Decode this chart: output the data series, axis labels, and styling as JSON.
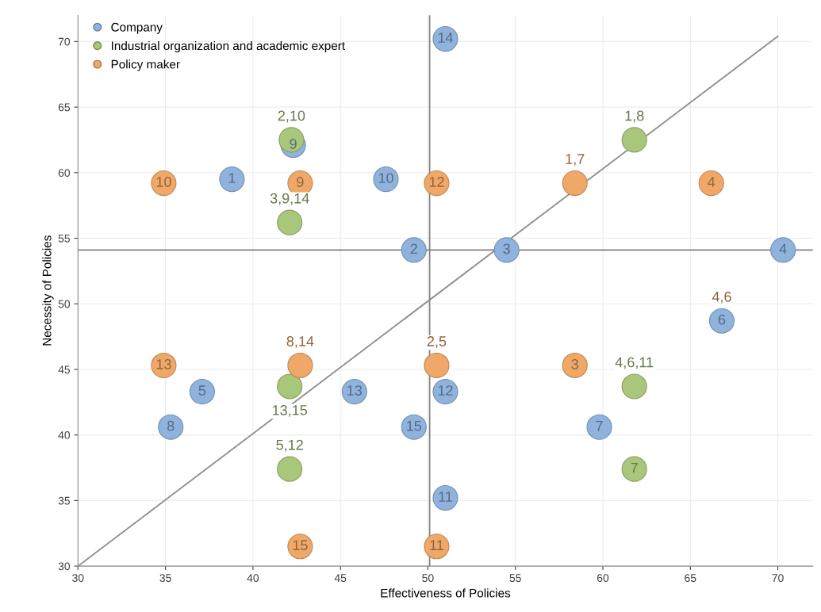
{
  "chart_data": {
    "type": "scatter",
    "xlabel": "Effectiveness of Policies",
    "ylabel": "Necessity of Policies",
    "xlim": [
      30,
      72
    ],
    "ylim": [
      30,
      72
    ],
    "xticks": [
      30,
      35,
      40,
      45,
      50,
      55,
      60,
      65,
      70
    ],
    "yticks": [
      30,
      35,
      40,
      45,
      50,
      55,
      60,
      65,
      70
    ],
    "grid": true,
    "legend": "top left",
    "series": [
      {
        "name": "Company",
        "color": "#8fb3dc",
        "marker": "circle",
        "x": [
          38.8,
          49.2,
          54.5,
          70.3,
          37.1,
          66.8,
          59.8,
          35.3,
          42.3,
          47.6,
          51.0,
          51.0,
          45.8,
          51.0,
          49.2
        ],
        "values": [
          59.5,
          54.1,
          54.1,
          54.1,
          43.3,
          48.7,
          40.6,
          40.6,
          62.1,
          59.5,
          35.2,
          43.3,
          43.3,
          70.2,
          40.6
        ]
      },
      {
        "name": "Industrial organization and academic expert",
        "color": "#a9c77a",
        "marker": "circle",
        "x": [
          42.2,
          42.1,
          61.8,
          42.1,
          61.8,
          42.1,
          61.8
        ],
        "values": [
          62.5,
          56.2,
          62.5,
          43.7,
          43.7,
          37.4,
          37.4
        ]
      },
      {
        "name": "Policy maker",
        "color": "#f0a868",
        "marker": "circle",
        "x": [
          34.9,
          42.7,
          50.5,
          58.4,
          66.2,
          42.7,
          34.9,
          50.5,
          58.4,
          42.7,
          50.5
        ],
        "values": [
          59.2,
          59.2,
          59.2,
          59.2,
          59.2,
          45.3,
          45.3,
          45.3,
          45.3,
          31.5,
          31.5
        ]
      },
      {
        "type": "line",
        "color": "#8c8c8c",
        "x": [
          30,
          70
        ],
        "values": [
          30,
          70.4
        ]
      }
    ],
    "annotations": [
      {
        "text": "1",
        "x": 38.8,
        "y": 59.5
      },
      {
        "text": "2",
        "x": 49.2,
        "y": 54.1
      },
      {
        "text": "3",
        "x": 54.5,
        "y": 54.1
      },
      {
        "text": "4",
        "x": 70.3,
        "y": 54.1
      },
      {
        "text": "5",
        "x": 37.1,
        "y": 43.3
      },
      {
        "text": "6",
        "x": 66.8,
        "y": 48.7
      },
      {
        "text": "7",
        "x": 59.8,
        "y": 40.6
      },
      {
        "text": "8",
        "x": 35.3,
        "y": 40.6
      },
      {
        "text": "9",
        "x": 42.3,
        "y": 62.1
      },
      {
        "text": "10",
        "x": 47.6,
        "y": 59.5
      },
      {
        "text": "11",
        "x": 51.0,
        "y": 35.2
      },
      {
        "text": "12",
        "x": 51.0,
        "y": 43.3
      },
      {
        "text": "13",
        "x": 45.8,
        "y": 43.3
      },
      {
        "text": "14",
        "x": 51.0,
        "y": 70.2
      },
      {
        "text": "15",
        "x": 49.2,
        "y": 40.6
      },
      {
        "text": "2,10",
        "x": 42.2,
        "y": 62.5
      },
      {
        "text": "3,9,14",
        "x": 42.1,
        "y": 56.2
      },
      {
        "text": "1,8",
        "x": 61.8,
        "y": 62.5
      },
      {
        "text": "13,15",
        "x": 42.1,
        "y": 43.7
      },
      {
        "text": "4,6,11",
        "x": 61.8,
        "y": 43.7
      },
      {
        "text": "5,12",
        "x": 42.1,
        "y": 37.4
      },
      {
        "text": "7",
        "x": 61.8,
        "y": 37.4
      },
      {
        "text": "10",
        "x": 34.9,
        "y": 59.2
      },
      {
        "text": "9",
        "x": 42.7,
        "y": 59.2
      },
      {
        "text": "12",
        "x": 50.5,
        "y": 59.2
      },
      {
        "text": "1,7",
        "x": 58.4,
        "y": 59.2
      },
      {
        "text": "4",
        "x": 66.2,
        "y": 59.2
      },
      {
        "text": "8,14",
        "x": 42.7,
        "y": 45.3
      },
      {
        "text": "13",
        "x": 34.9,
        "y": 45.3
      },
      {
        "text": "2,5",
        "x": 50.5,
        "y": 45.3
      },
      {
        "text": "3",
        "x": 58.4,
        "y": 45.3
      },
      {
        "text": "15",
        "x": 42.7,
        "y": 31.5
      },
      {
        "text": "11",
        "x": 50.5,
        "y": 31.5
      },
      {
        "text": "4,6",
        "x": 66.8,
        "y": 48.7
      }
    ],
    "ref_lines": [
      {
        "axis": "x",
        "value": 50.1,
        "color": "#7f7f7f"
      },
      {
        "axis": "y",
        "value": 54.1,
        "color": "#7f7f7f"
      }
    ]
  }
}
